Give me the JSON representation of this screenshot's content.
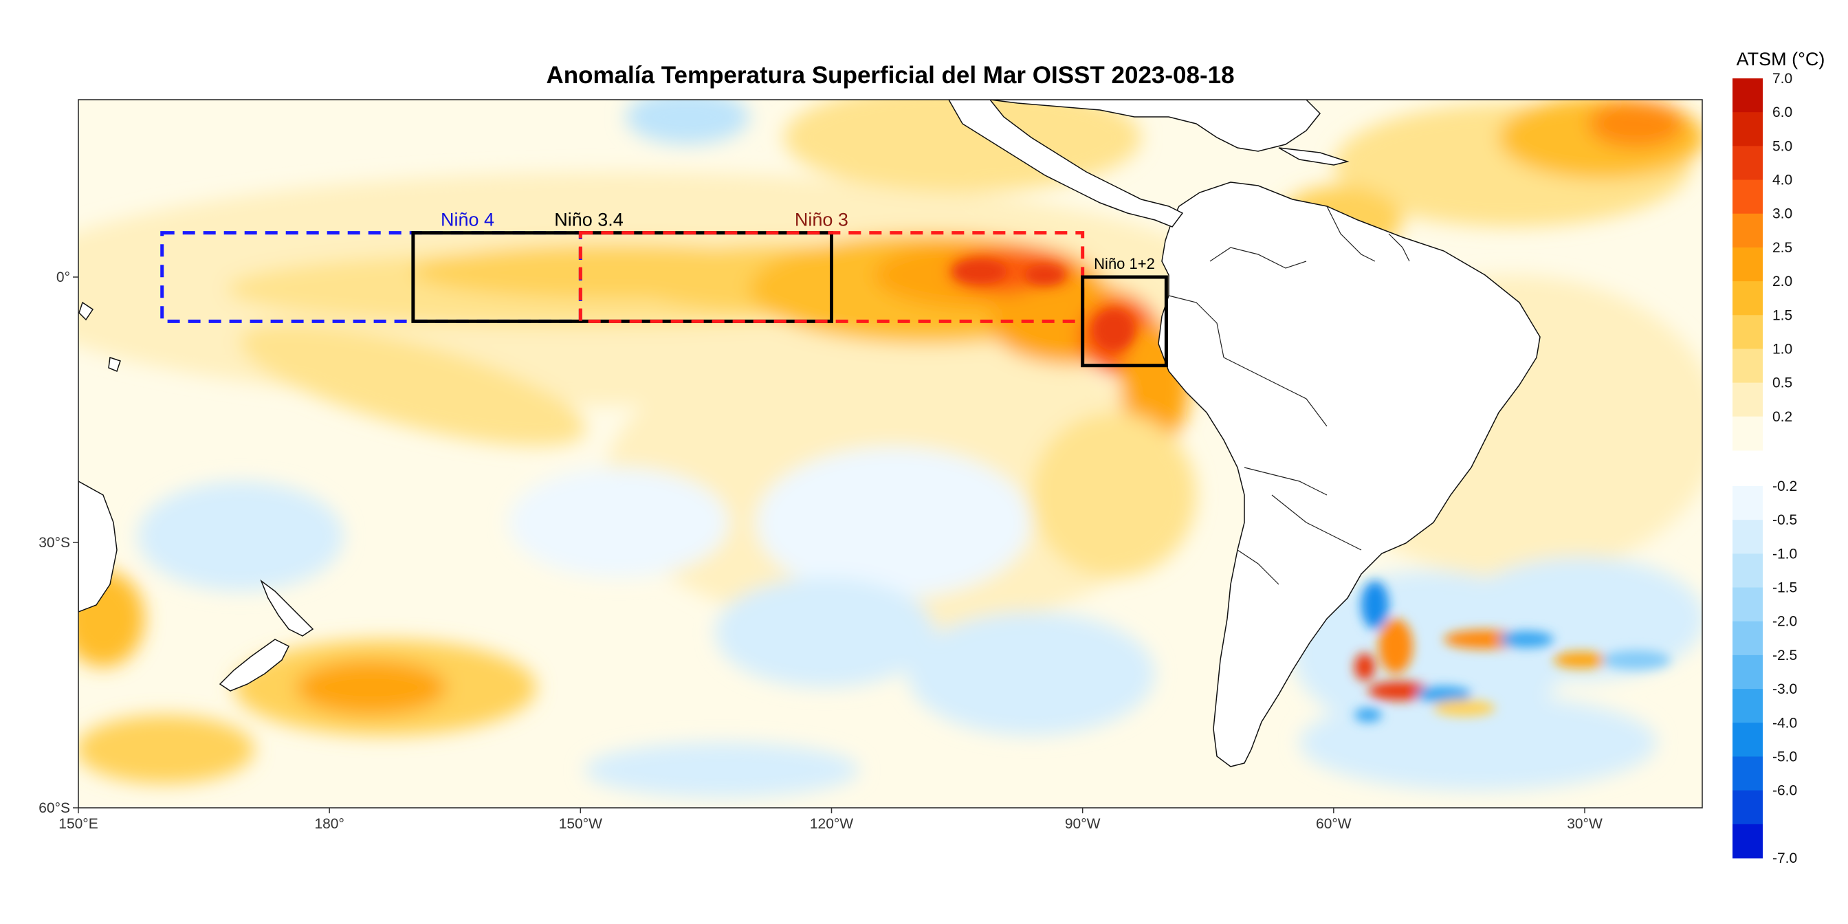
{
  "title": "Anomalía Temperatura Superficial del Mar OISST 2023-08-18",
  "colorbar": {
    "title": "ATSM (°C)",
    "positive_labels": [
      "7.0",
      "6.0",
      "5.0",
      "4.0",
      "3.0",
      "2.5",
      "2.0",
      "1.5",
      "1.0",
      "0.5",
      "0.2"
    ],
    "positive_colors": [
      "#c40f00",
      "#d72400",
      "#ea3b0a",
      "#fb5a10",
      "#ff8a10",
      "#ffa40f",
      "#ffbd2a",
      "#ffd25a",
      "#ffe38e",
      "#fff0c0",
      "#fffbe8"
    ],
    "negative_labels": [
      "-0.2",
      "-0.5",
      "-1.0",
      "-1.5",
      "-2.0",
      "-2.5",
      "-3.0",
      "-4.0",
      "-5.0",
      "-6.0",
      "-7.0"
    ],
    "negative_colors": [
      "#eef8ff",
      "#d6eefd",
      "#bde4fb",
      "#a3d9fa",
      "#84cbf8",
      "#5fbaf5",
      "#35a5f1",
      "#138cec",
      "#0a6ae6",
      "#0546de",
      "#0018d6"
    ]
  },
  "axes": {
    "x_ticks": [
      "150°E",
      "180°",
      "150°W",
      "120°W",
      "90°W",
      "60°W",
      "30°W"
    ],
    "y_ticks": [
      "0°",
      "30°S",
      "60°S"
    ]
  },
  "regions": [
    {
      "name": "Niño 4",
      "label_color": "#1010e0",
      "line_color": "#1a1aff",
      "style": "dashed",
      "lon": [
        160,
        -150
      ],
      "lat": [
        5,
        -5
      ]
    },
    {
      "name": "Niño 3.4",
      "label_color": "#000000",
      "line_color": "#000000",
      "style": "solid",
      "lon": [
        -170,
        -120
      ],
      "lat": [
        5,
        -5
      ]
    },
    {
      "name": "Niño 3",
      "label_color": "#8b1a10",
      "line_color": "#ff1a1a",
      "style": "dashed",
      "lon": [
        -150,
        -90
      ],
      "lat": [
        5,
        -5
      ]
    },
    {
      "name": "Niño 1+2",
      "label_color": "#000000",
      "line_color": "#000000",
      "style": "solid",
      "lon": [
        -90,
        -80
      ],
      "lat": [
        0,
        -10
      ]
    }
  ],
  "colors": {
    "land": "#ffffff",
    "coast": "#111111",
    "ocean_base": "#fffbe8"
  }
}
